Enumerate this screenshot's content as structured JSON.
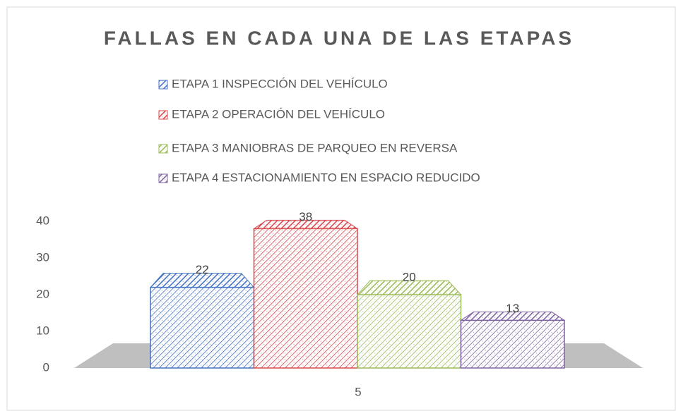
{
  "chart_data": {
    "type": "bar3d",
    "title": "FALLAS EN CADA UNA DE  LAS ETAPAS",
    "categories": [
      "5"
    ],
    "series": [
      {
        "name": "ETAPA 1   INSPECCIÓN DEL VEHÍCULO",
        "color": "#4472c4",
        "values": [
          22
        ]
      },
      {
        "name": "ETAPA 2   OPERACIÓN DEL VEHÍCULO",
        "color": "#d9484d",
        "values": [
          38
        ]
      },
      {
        "name": "ETAPA 3  MANIOBRAS DE PARQUEO EN REVERSA",
        "color": "#9bbb59",
        "values": [
          20
        ]
      },
      {
        "name": "ETAPA 4  ESTACIONAMIENTO EN ESPACIO REDUCIDO",
        "color": "#8064a2",
        "values": [
          13
        ]
      }
    ],
    "ylim": [
      0,
      40
    ],
    "yticks": [
      0,
      10,
      20,
      30,
      40
    ]
  }
}
